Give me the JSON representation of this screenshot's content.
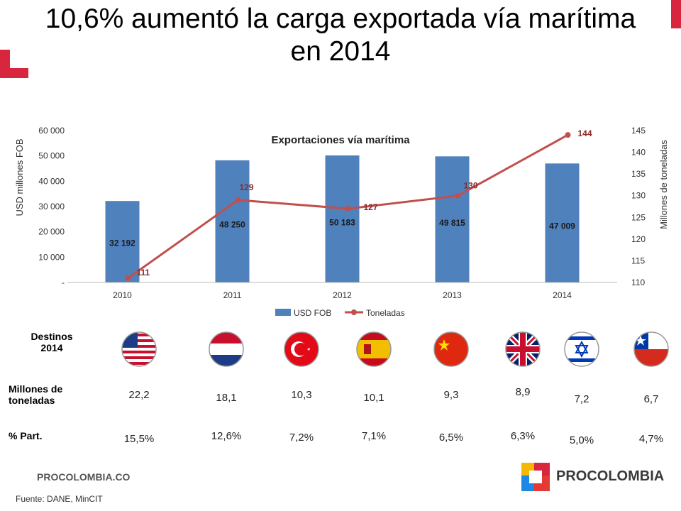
{
  "header": {
    "title_line1": "10,6% aumentó la carga exportada vía marítima",
    "title_line2": "en 2014"
  },
  "chart_data": {
    "type": "bar",
    "title": "Exportaciones vía marítima",
    "categories": [
      "2010",
      "2011",
      "2012",
      "2013",
      "2014"
    ],
    "series": [
      {
        "name": "USD FOB",
        "type": "bar",
        "axis": "left",
        "values": [
          32192,
          48250,
          50183,
          49815,
          47009
        ],
        "labels": [
          "32 192",
          "48 250",
          "50 183",
          "49 815",
          "47 009"
        ],
        "color": "#4F81BD"
      },
      {
        "name": "Toneladas",
        "type": "line",
        "axis": "right",
        "values": [
          111,
          129,
          127,
          130,
          144
        ],
        "labels": [
          "111",
          "129",
          "127",
          "130",
          "144"
        ],
        "color": "#C0504D"
      }
    ],
    "ylabel": "USD millones FOB",
    "y2label": "Millones de toneladas",
    "ylim": [
      0,
      60000
    ],
    "y2lim": [
      110,
      145
    ],
    "yticks": [
      "-",
      "10 000",
      "20 000",
      "30 000",
      "40 000",
      "50 000",
      "60 000"
    ],
    "y2ticks": [
      "110",
      "115",
      "120",
      "125",
      "130",
      "135",
      "140",
      "145"
    ],
    "legend": "bottom"
  },
  "destinations": {
    "title": "Destinos 2014",
    "row1_label": "Millones de toneladas",
    "row2_label": "% Part.",
    "items": [
      {
        "flag": "usa-flag-icon",
        "tons": "22,2",
        "share": "15,5%"
      },
      {
        "flag": "netherlands-flag-icon",
        "tons": "18,1",
        "share": "12,6%"
      },
      {
        "flag": "turkey-flag-icon",
        "tons": "10,3",
        "share": "7,2%"
      },
      {
        "flag": "spain-flag-icon",
        "tons": "10,1",
        "share": "7,1%"
      },
      {
        "flag": "china-flag-icon",
        "tons": "9,3",
        "share": "6,5%"
      },
      {
        "flag": "uk-flag-icon",
        "tons": "8,9",
        "share": "6,3%"
      },
      {
        "flag": "israel-flag-icon",
        "tons": "7,2",
        "share": "5,0%"
      },
      {
        "flag": "chile-flag-icon",
        "tons": "6,7",
        "share": "4,7%"
      }
    ]
  },
  "footer": {
    "site": "PROCOLOMBIA.CO",
    "source": "Fuente: DANE, MinCIT",
    "brand": "PROCOLOMBIA"
  }
}
